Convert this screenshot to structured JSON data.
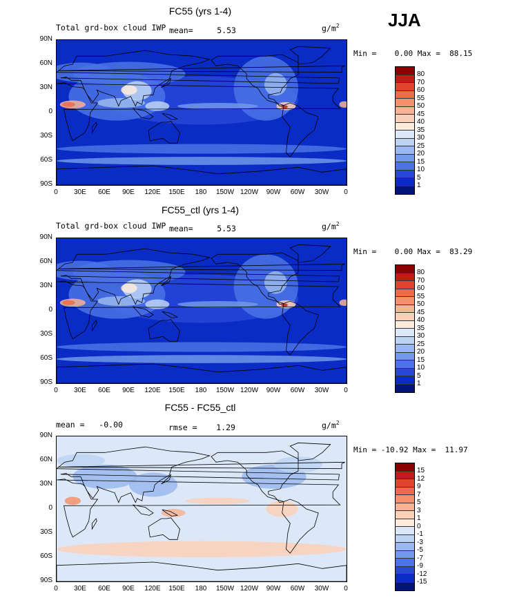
{
  "season": "JJA",
  "panels": [
    {
      "title": "FC55 (yrs 1-4)",
      "subtitle_left": "Total grd-box cloud IWP",
      "stat1": "mean=     5.53",
      "units_prefix": "g/m",
      "units_sup": "2",
      "minmax": "Min =    0.00 Max =  88.15",
      "levels": [
        "80",
        "70",
        "60",
        "55",
        "50",
        "45",
        "40",
        "35",
        "30",
        "25",
        "20",
        "15",
        "10",
        "5",
        "1"
      ],
      "colors": [
        "#8B0000",
        "#C11B17",
        "#E0442A",
        "#EE6A4A",
        "#F4916C",
        "#F8B394",
        "#FBD0B9",
        "#FDEBDD",
        "#DCE8F7",
        "#BDD3F3",
        "#9AB8EF",
        "#7198EA",
        "#4B72E6",
        "#2747D9",
        "#0A2BC4",
        "#011478"
      ]
    },
    {
      "title": "FC55_ctl (yrs 1-4)",
      "subtitle_left": "Total grd-box cloud IWP",
      "stat1": "mean=     5.53",
      "units_prefix": "g/m",
      "units_sup": "2",
      "minmax": "Min =    0.00 Max =  83.29",
      "levels": [
        "80",
        "70",
        "60",
        "55",
        "50",
        "45",
        "40",
        "35",
        "30",
        "25",
        "20",
        "15",
        "10",
        "5",
        "1"
      ],
      "colors": [
        "#8B0000",
        "#C11B17",
        "#E0442A",
        "#EE6A4A",
        "#F4916C",
        "#F8B394",
        "#FBD0B9",
        "#FDEBDD",
        "#DCE8F7",
        "#BDD3F3",
        "#9AB8EF",
        "#7198EA",
        "#4B72E6",
        "#2747D9",
        "#0A2BC4",
        "#011478"
      ]
    },
    {
      "title": "FC55 - FC55_ctl",
      "subtitle_left": "mean =   -0.00",
      "stat1": "rmse =    1.29",
      "units_prefix": "g/m",
      "units_sup": "2",
      "minmax": "Min = -10.92 Max =  11.97",
      "levels": [
        "15",
        "12",
        "9",
        "7",
        "5",
        "3",
        "1",
        "0",
        "-1",
        "-3",
        "-5",
        "-7",
        "-9",
        "-12",
        "-15"
      ],
      "colors": [
        "#8B0000",
        "#C11B17",
        "#E0442A",
        "#EE6A4A",
        "#F4916C",
        "#F8B394",
        "#FBD0B9",
        "#FDEBDD",
        "#DCE8F7",
        "#BDD3F3",
        "#9AB8EF",
        "#7198EA",
        "#4B72E6",
        "#2747D9",
        "#0A2BC4",
        "#011478"
      ]
    }
  ],
  "chart_data": {
    "type": "heatmap",
    "x_ticks": [
      "0",
      "30E",
      "60E",
      "90E",
      "120E",
      "150E",
      "180",
      "150W",
      "120W",
      "90W",
      "60W",
      "30W",
      "0"
    ],
    "y_ticks": [
      "90N",
      "60N",
      "30N",
      "0",
      "30S",
      "60S",
      "90S"
    ],
    "xlim": [
      0,
      360
    ],
    "ylim": [
      -90,
      90
    ]
  }
}
